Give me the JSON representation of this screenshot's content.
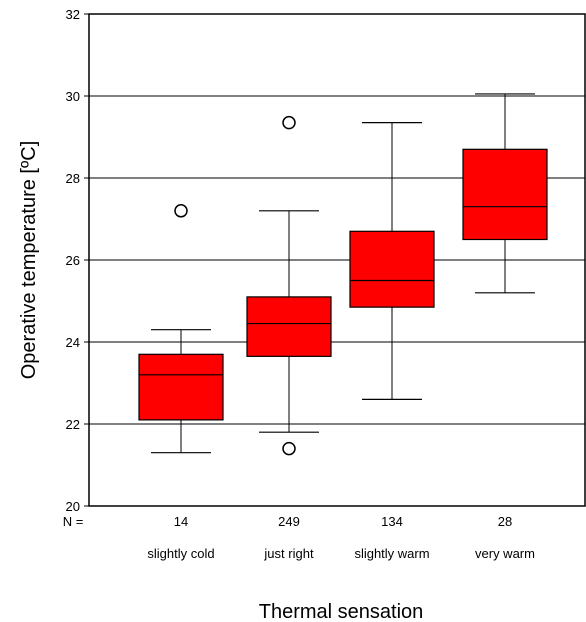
{
  "chart_data": {
    "type": "box",
    "ylabel": "Operative temperature [ºC]",
    "xlabel": "Thermal sensation",
    "ylim": [
      20,
      32
    ],
    "yticks": [
      20,
      22,
      24,
      26,
      28,
      30,
      32
    ],
    "grid": "horizontal",
    "n_prefix": "N =",
    "box_color": "#ff0000",
    "categories": [
      "slightly cold",
      "just right",
      "slightly warm",
      "very warm"
    ],
    "n": [
      "14",
      "249",
      "134",
      "28"
    ],
    "boxes": [
      {
        "whisker_low": 21.3,
        "q1": 22.1,
        "median": 23.2,
        "q3": 23.7,
        "whisker_high": 24.3,
        "outliers": [
          27.2
        ]
      },
      {
        "whisker_low": 21.8,
        "q1": 23.65,
        "median": 24.45,
        "q3": 25.1,
        "whisker_high": 27.2,
        "outliers": [
          29.35,
          21.4
        ]
      },
      {
        "whisker_low": 22.6,
        "q1": 24.85,
        "median": 25.5,
        "q3": 26.7,
        "whisker_high": 29.35,
        "outliers": []
      },
      {
        "whisker_low": 25.2,
        "q1": 26.5,
        "median": 27.3,
        "q3": 28.7,
        "whisker_high": 30.05,
        "outliers": []
      }
    ]
  }
}
